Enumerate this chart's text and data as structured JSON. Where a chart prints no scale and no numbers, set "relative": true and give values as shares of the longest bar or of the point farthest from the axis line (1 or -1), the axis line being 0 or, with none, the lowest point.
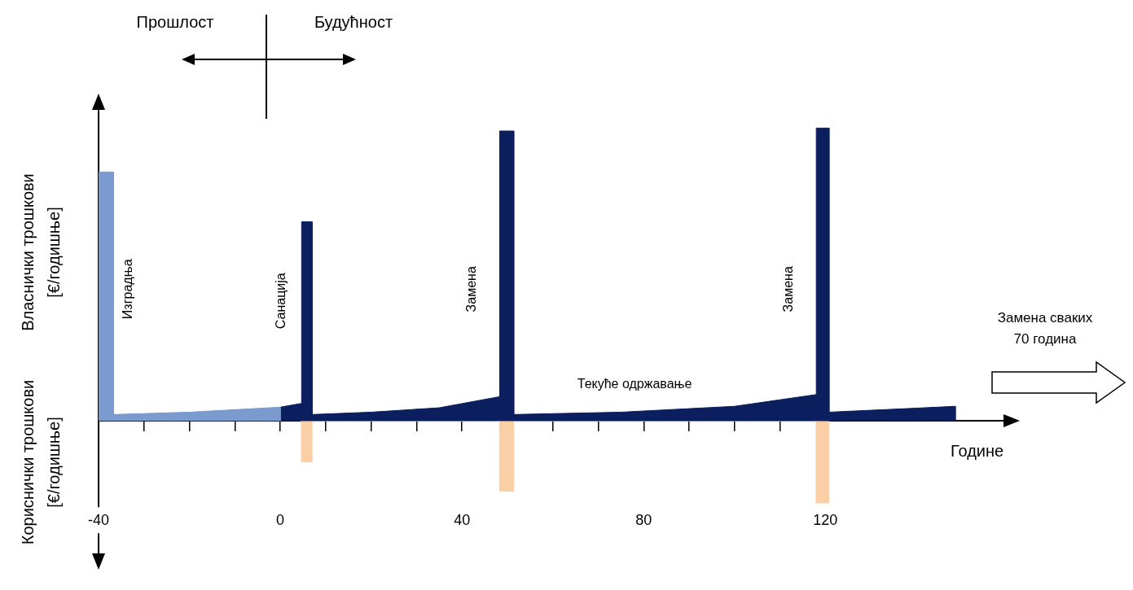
{
  "chart_data": {
    "type": "area",
    "relative": true,
    "xlabel": "Године",
    "ylabel": "Власнички трошкови [€/годишње]",
    "xlim": [
      -40,
      161
    ],
    "xticks": [
      -40,
      {
        "value": -30,
        "label": null
      },
      {
        "value": -20,
        "label": null
      },
      {
        "value": -10,
        "label": null
      },
      0,
      {
        "value": 10,
        "label": null
      },
      {
        "value": 20,
        "label": null
      },
      {
        "value": 30,
        "label": null
      },
      40,
      {
        "value": 50,
        "label": null
      },
      {
        "value": 60,
        "label": null
      },
      {
        "value": 70,
        "label": null
      },
      80,
      {
        "value": 90,
        "label": null
      },
      {
        "value": 100,
        "label": null
      },
      {
        "value": 110,
        "label": null
      },
      120
    ],
    "series": [
      {
        "color": "#7b9bcf",
        "x": [
          -40,
          -40,
          -36.7,
          -36.7,
          -20,
          0,
          0
        ],
        "values": [
          0,
          0.85,
          0.85,
          0.022,
          0.03,
          0.047,
          0
        ]
      },
      {
        "color": "#0b1f5e",
        "x": [
          0,
          0,
          4.7,
          4.7,
          7,
          7,
          20,
          35,
          48.3,
          48.3,
          51.4,
          51.4,
          75,
          100,
          118,
          118,
          120.8,
          120.8,
          135,
          148.6,
          148.6
        ],
        "values": [
          0,
          0.047,
          0.06,
          0.68,
          0.68,
          0.022,
          0.03,
          0.045,
          0.083,
          0.99,
          0.99,
          0.022,
          0.03,
          0.05,
          0.09,
          1,
          1,
          0.03,
          0.04,
          0.05,
          0
        ]
      },
      {
        "color": "#fbcfa5",
        "x": [
          4.7,
          4.7,
          7,
          7,
          48.3,
          48.3,
          51.4,
          51.4,
          118,
          118,
          120.8,
          120.8
        ],
        "values": [
          0,
          -0.14,
          -0.14,
          0,
          0,
          -0.24,
          -0.24,
          0,
          0,
          -0.28,
          -0.28,
          0
        ]
      }
    ],
    "annotations": [
      "Изградња",
      "Санација",
      "Замена",
      "Замена",
      "Текуће одржавање",
      "Прошлост",
      "Будућност",
      "Кориснички трошкови [€/годишње]",
      "Замена сваких 70 година"
    ]
  }
}
